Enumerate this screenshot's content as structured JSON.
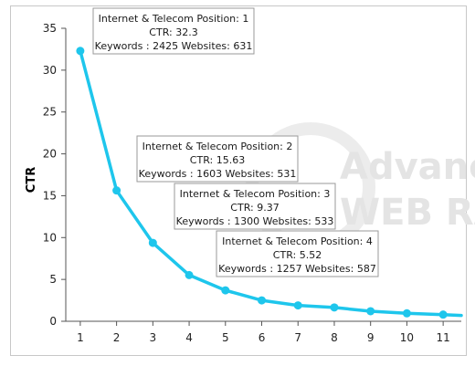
{
  "chart_data": {
    "type": "line",
    "title": "",
    "xlabel": "",
    "ylabel": "CTR",
    "xlim": [
      0.6,
      11.5
    ],
    "ylim": [
      0,
      35
    ],
    "x_ticks": [
      1,
      2,
      3,
      4,
      5,
      6,
      7,
      8,
      9,
      10,
      11
    ],
    "y_ticks": [
      0,
      5,
      10,
      15,
      20,
      25,
      30,
      35
    ],
    "grid": false,
    "series": [
      {
        "color": "#1ec6ec",
        "x": [
          1,
          2,
          3,
          4,
          5,
          6,
          7,
          8,
          9,
          10,
          11,
          11.5
        ],
        "y": [
          32.3,
          15.63,
          9.37,
          5.52,
          3.7,
          2.5,
          1.9,
          1.65,
          1.2,
          0.95,
          0.8,
          0.7
        ]
      }
    ],
    "tooltips": [
      {
        "title": "Internet & Telecom Position: 1",
        "ctr": "CTR: 32.3",
        "detail": "Keywords : 2425 Websites: 631"
      },
      {
        "title": "Internet & Telecom Position: 2",
        "ctr": "CTR: 15.63",
        "detail": "Keywords : 1603 Websites: 531"
      },
      {
        "title": "Internet & Telecom Position: 3",
        "ctr": "CTR: 9.37",
        "detail": "Keywords : 1300 Websites: 533"
      },
      {
        "title": "Internet & Telecom Position: 4",
        "ctr": "CTR: 5.52",
        "detail": "Keywords : 1257 Websites: 587"
      }
    ],
    "watermark": [
      "Advanced",
      "WEB RANKING"
    ]
  },
  "colors": {
    "line": "#1ec6ec",
    "axis": "#555555",
    "text": "#222222",
    "watermark": "#e4e4e4"
  }
}
